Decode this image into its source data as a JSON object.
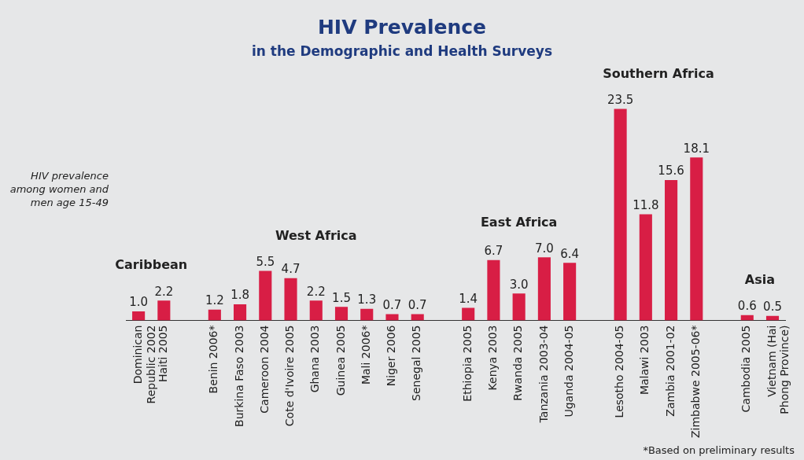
{
  "chart_data": {
    "type": "bar",
    "title": "HIV Prevalence",
    "subtitle": "in the Demographic and Health Surveys",
    "ylabel": "HIV prevalence among women and men age 15-49",
    "categories": [
      "Dominican\nRepublic 2002",
      "Haiti 2005",
      null,
      "Benin 2006*",
      "Burkina Faso 2003",
      "Cameroon 2004",
      "Cote d'Ivoire 2005",
      "Ghana 2003",
      "Guinea 2005",
      "Mali 2006*",
      "Niger 2006",
      "Senegal 2005",
      null,
      "Ethiopia 2005",
      "Kenya 2003",
      "Rwanda 2005",
      "Tanzania 2003-04",
      "Uganda 2004-05",
      null,
      "Lesotho 2004-05",
      "Malawi 2003",
      "Zambia 2001-02",
      "Zimbabwe 2005-06*",
      null,
      "Cambodia 2005",
      "Vietnam (Hai\nPhong Province)"
    ],
    "values": [
      1.0,
      2.2,
      null,
      1.2,
      1.8,
      5.5,
      4.7,
      2.2,
      1.5,
      1.3,
      0.7,
      0.7,
      null,
      1.4,
      6.7,
      3.0,
      7.0,
      6.4,
      null,
      23.5,
      11.8,
      15.6,
      18.1,
      null,
      0.6,
      0.5
    ],
    "value_labels": [
      "1.0",
      "2.2",
      null,
      "1.2",
      "1.8",
      "5.5",
      "4.7",
      "2.2",
      "1.5",
      "1.3",
      "0.7",
      "0.7",
      null,
      "1.4",
      "6.7",
      "3.0",
      "7.0",
      "6.4",
      null,
      "23.5",
      "11.8",
      "15.6",
      "18.1",
      null,
      "0.6",
      "0.5"
    ],
    "color": "#d81e45",
    "grid": false,
    "legend": false,
    "annotations": [
      "Caribbean",
      "West Africa",
      "East Africa",
      "Southern Africa",
      "Asia",
      "*Based on preliminary results"
    ]
  }
}
